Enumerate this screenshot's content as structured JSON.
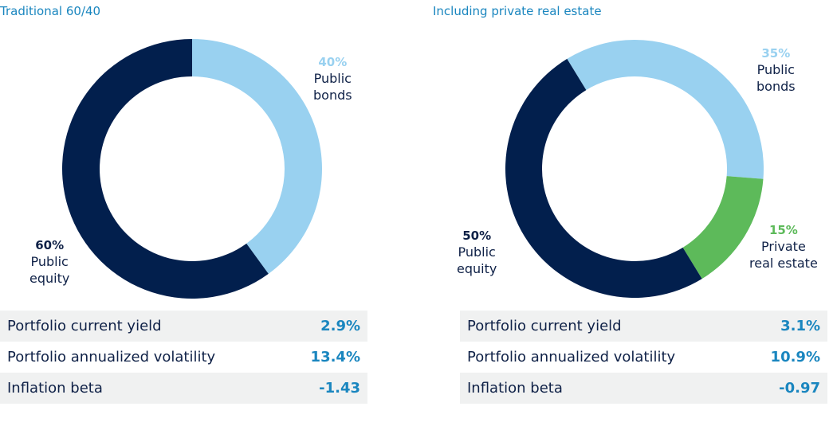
{
  "chart_data": [
    {
      "type": "pie",
      "variant": "donut",
      "title": "Traditional 60/40",
      "start": "top",
      "direction": "clockwise",
      "slices": [
        {
          "name": "Public bonds",
          "label_line1": "Public",
          "label_line2": "bonds",
          "value": 40,
          "pct_label": "40%",
          "color": "#99d1f0",
          "pct_color": "#99d1f0"
        },
        {
          "name": "Public equity",
          "label_line1": "Public",
          "label_line2": "equity",
          "value": 60,
          "pct_label": "60%",
          "color": "#021f4d",
          "pct_color": "#0f2147"
        }
      ],
      "stats": [
        {
          "label": "Portfolio current yield",
          "value": "2.9%"
        },
        {
          "label": "Portfolio annualized volatility",
          "value": "13.4%"
        },
        {
          "label": "Inflation beta",
          "value": "-1.43"
        }
      ]
    },
    {
      "type": "pie",
      "variant": "donut",
      "title": "Including private real estate",
      "start_offset_deg": -31.5,
      "direction": "clockwise",
      "slices": [
        {
          "name": "Public bonds",
          "label_line1": "Public",
          "label_line2": "bonds",
          "value": 35,
          "pct_label": "35%",
          "color": "#99d1f0",
          "pct_color": "#99d1f0"
        },
        {
          "name": "Private real estate",
          "label_line1": "Private",
          "label_line2": "real estate",
          "value": 15,
          "pct_label": "15%",
          "color": "#5dba5a",
          "pct_color": "#5dba5a"
        },
        {
          "name": "Public equity",
          "label_line1": "Public",
          "label_line2": "equity",
          "value": 50,
          "pct_label": "50%",
          "color": "#021f4d",
          "pct_color": "#0f2147"
        }
      ],
      "stats": [
        {
          "label": "Portfolio current yield",
          "value": "3.1%"
        },
        {
          "label": "Portfolio annualized volatility",
          "value": "10.9%"
        },
        {
          "label": "Inflation beta",
          "value": "-0.97"
        }
      ]
    }
  ]
}
